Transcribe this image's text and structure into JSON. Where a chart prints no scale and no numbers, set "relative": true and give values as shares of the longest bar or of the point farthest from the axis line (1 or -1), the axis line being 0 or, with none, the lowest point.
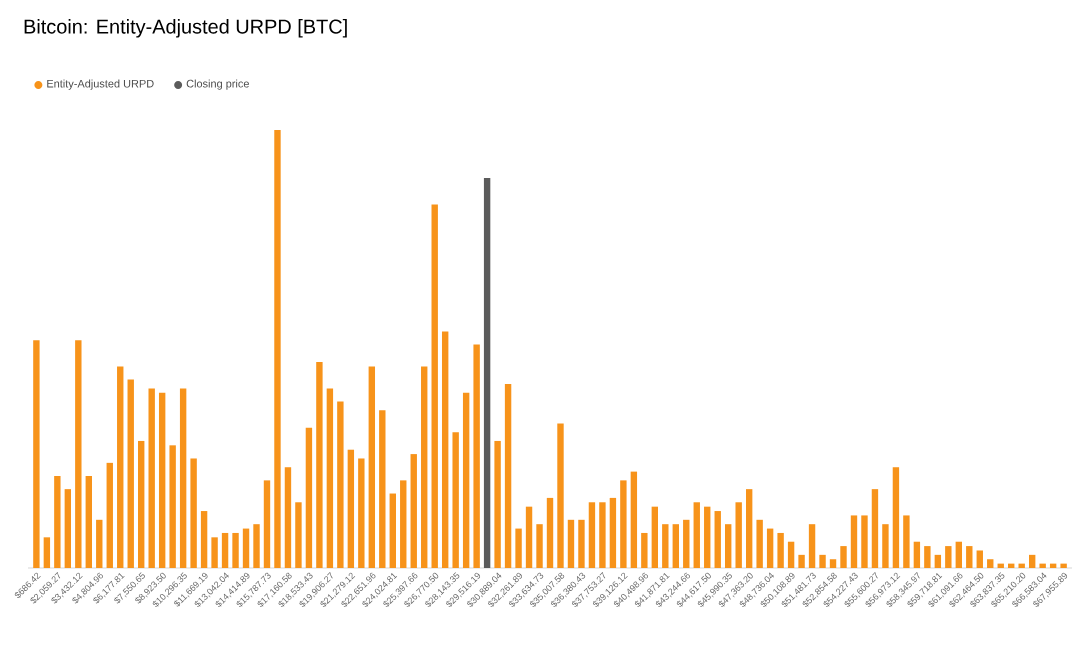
{
  "chart_data": {
    "type": "bar",
    "title": "Bitcoin: Entity-Adjusted URPD [BTC]",
    "relative": true,
    "legend": "top left",
    "categories": [
      "$686.42",
      null,
      "$2,059.27",
      null,
      "$3,432.12",
      null,
      "$4,804.96",
      null,
      "$6,177.81",
      null,
      "$7,550.65",
      null,
      "$8,923.50",
      null,
      "$10,296.35",
      null,
      "$11,669.19",
      null,
      "$13,042.04",
      null,
      "$14,414.89",
      null,
      "$15,787.73",
      null,
      "$17,160.58",
      null,
      "$18,533.43",
      null,
      "$19,906.27",
      null,
      "$21,279.12",
      null,
      "$22,651.96",
      null,
      "$24,024.81",
      null,
      "$25,397.66",
      null,
      "$26,770.50",
      null,
      "$28,143.35",
      null,
      "$29,516.19",
      null,
      "$30,889.04",
      null,
      "$32,261.89",
      null,
      "$33,634.73",
      null,
      "$35,007.58",
      null,
      "$36,380.43",
      null,
      "$37,753.27",
      null,
      "$39,126.12",
      null,
      "$40,498.96",
      null,
      "$41,871.81",
      null,
      "$43,244.66",
      null,
      "$44,617.50",
      null,
      "$45,990.35",
      null,
      "$47,363.20",
      null,
      "$48,736.04",
      null,
      "$50,108.89",
      null,
      "$51,481.73",
      null,
      "$52,854.58",
      null,
      "$54,227.43",
      null,
      "$55,600.27",
      null,
      "$56,973.12",
      null,
      "$58,345.97",
      null,
      "$59,718.81",
      null,
      "$61,091.66",
      null,
      "$62,464.50",
      null,
      "$63,837.35",
      null,
      "$65,210.20",
      null,
      "$66,583.04",
      null,
      "$67,955.89"
    ],
    "series": [
      {
        "name": "Entity-Adjusted URPD",
        "color": "#f7931a",
        "values": [
          0.52,
          0.07,
          0.21,
          0.18,
          0.52,
          0.21,
          0.11,
          0.24,
          0.46,
          0.43,
          0.29,
          0.41,
          0.4,
          0.28,
          0.41,
          0.25,
          0.13,
          0.07,
          0.08,
          0.08,
          0.09,
          0.1,
          0.2,
          1,
          0.23,
          0.15,
          0.32,
          0.47,
          0.41,
          0.38,
          0.27,
          0.25,
          0.46,
          0.36,
          0.17,
          0.2,
          0.26,
          0.46,
          0.83,
          0.54,
          0.31,
          0.4,
          0.51,
          null,
          0.29,
          0.42,
          0.09,
          0.14,
          0.1,
          0.16,
          0.33,
          0.11,
          0.11,
          0.15,
          0.15,
          0.16,
          0.2,
          0.22,
          0.08,
          0.14,
          0.1,
          0.1,
          0.11,
          0.15,
          0.14,
          0.13,
          0.1,
          0.15,
          0.18,
          0.11,
          0.09,
          0.08,
          0.06,
          0.03,
          0.1,
          0.03,
          0.02,
          0.05,
          0.12,
          0.12,
          0.18,
          0.1,
          0.23,
          0.12,
          0.06,
          0.05,
          0.03,
          0.05,
          0.06,
          0.05,
          0.04,
          0.02,
          0.01,
          0.01,
          0.01,
          0.03,
          0.01,
          0.01,
          0.01
        ]
      },
      {
        "name": "Closing price",
        "color": "#5b5b5b",
        "values": [
          null,
          null,
          null,
          null,
          null,
          null,
          null,
          null,
          null,
          null,
          null,
          null,
          null,
          null,
          null,
          null,
          null,
          null,
          null,
          null,
          null,
          null,
          null,
          null,
          null,
          null,
          null,
          null,
          null,
          null,
          null,
          null,
          null,
          null,
          null,
          null,
          null,
          null,
          null,
          null,
          null,
          null,
          null,
          0.89,
          null,
          null,
          null,
          null,
          null,
          null,
          null,
          null,
          null,
          null,
          null,
          null,
          null,
          null,
          null,
          null,
          null,
          null,
          null,
          null,
          null,
          null,
          null,
          null,
          null,
          null,
          null,
          null,
          null,
          null,
          null,
          null,
          null,
          null,
          null,
          null,
          null,
          null,
          null,
          null,
          null,
          null,
          null,
          null,
          null,
          null,
          null,
          null,
          null,
          null,
          null,
          null,
          null,
          null,
          null
        ]
      }
    ]
  }
}
